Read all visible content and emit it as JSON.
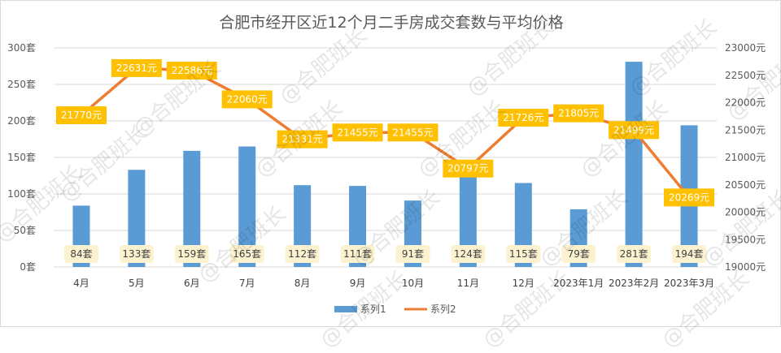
{
  "chart_data": {
    "type": "bar+line",
    "title": "合肥市经开区近12个月二手房成交套数与平均价格",
    "categories": [
      "4月",
      "5月",
      "6月",
      "7月",
      "8月",
      "9月",
      "10月",
      "11月",
      "12月",
      "2023年1月",
      "2023年2月",
      "2023年3月"
    ],
    "series": [
      {
        "name": "系列1",
        "type": "bar",
        "axis": "left",
        "color": "#5b9bd5",
        "values": [
          84,
          133,
          159,
          165,
          112,
          111,
          91,
          124,
          115,
          79,
          281,
          194
        ],
        "labels": [
          "84套",
          "133套",
          "159套",
          "165套",
          "112套",
          "111套",
          "91套",
          "124套",
          "115套",
          "79套",
          "281套",
          "194套"
        ]
      },
      {
        "name": "系列2",
        "type": "line",
        "axis": "right",
        "color": "#ed7d31",
        "values": [
          21770,
          22631,
          22586,
          22060,
          21331,
          21455,
          21455,
          20797,
          21726,
          21805,
          21499,
          20269
        ],
        "labels": [
          "21770元",
          "22631元",
          "22586元",
          "22060元",
          "21331元",
          "21455元",
          "21455元",
          "20797元",
          "21726元",
          "21805元",
          "21499元",
          "20269元"
        ]
      }
    ],
    "left_axis": {
      "min": 0,
      "max": 300,
      "step": 50,
      "tick_labels": [
        "0套",
        "50套",
        "100套",
        "150套",
        "200套",
        "250套",
        "300套"
      ]
    },
    "right_axis": {
      "min": 19000,
      "max": 23000,
      "step": 500,
      "tick_labels": [
        "19000元",
        "19500元",
        "20000元",
        "20500元",
        "21000元",
        "21500元",
        "22000元",
        "22500元",
        "23000元"
      ]
    },
    "grid": true,
    "legend_position": "bottom"
  },
  "watermark_text": "@合肥班长"
}
